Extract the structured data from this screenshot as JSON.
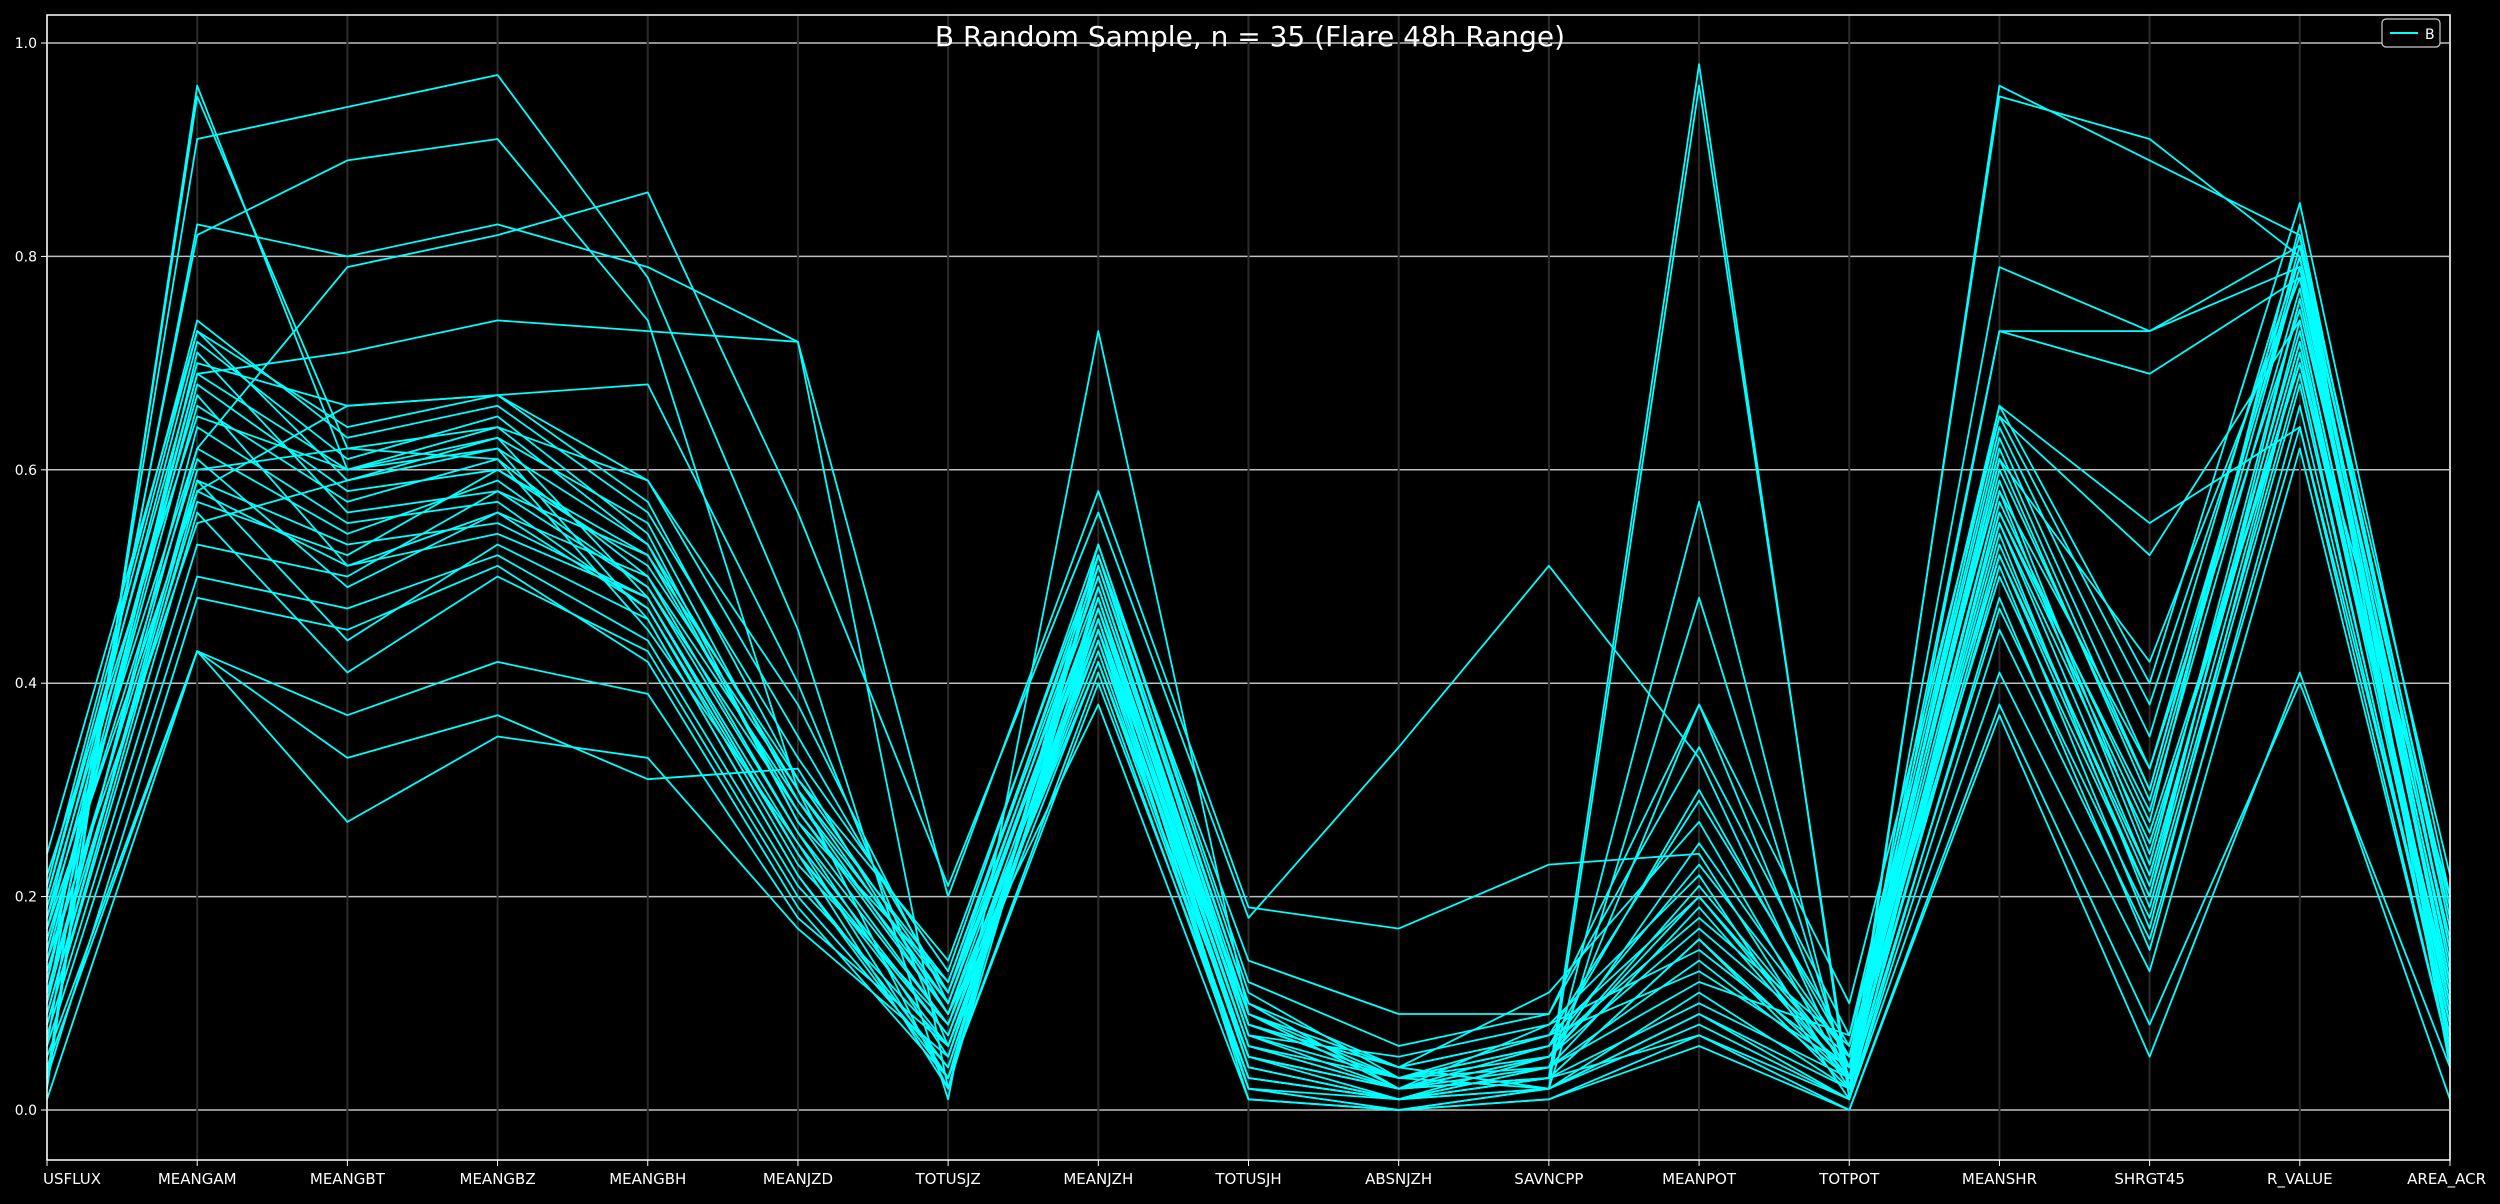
{
  "chart_data": {
    "type": "parallel-coordinates",
    "title": "B Random Sample, n = 35 (Flare 48h Range)",
    "categories": [
      "USFLUX",
      "MEANGAM",
      "MEANGBT",
      "MEANGBZ",
      "MEANGBH",
      "MEANJZD",
      "TOTUSJZ",
      "MEANJZH",
      "TOTUSJH",
      "ABSNJZH",
      "SAVNCPP",
      "MEANPOT",
      "TOTPOT",
      "MEANSHR",
      "SHRGT45",
      "R_VALUE",
      "AREA_ACR"
    ],
    "ylim": [
      0,
      1
    ],
    "y_ticks": [
      "0.0",
      "0.2",
      "0.4",
      "0.6",
      "0.8",
      "1.0"
    ],
    "grid": true,
    "legend": {
      "position": "top-right",
      "entries": [
        "B"
      ]
    },
    "colors": {
      "background": "#000000",
      "line": "#00FFFF",
      "axes": "#FFFFFF",
      "grid": "#FFFFFF"
    },
    "series": [
      {
        "values": [
          0.02,
          0.96,
          0.6,
          0.63,
          0.48,
          0.24,
          0.02,
          0.53,
          0.11,
          0.03,
          0.02,
          0.96,
          0.02,
          0.95,
          0.91,
          0.8,
          0.04
        ]
      },
      {
        "values": [
          0.03,
          0.95,
          0.62,
          0.61,
          0.45,
          0.25,
          0.03,
          0.51,
          0.1,
          0.02,
          0.03,
          0.98,
          0.01,
          0.96,
          0.89,
          0.82,
          0.05
        ]
      },
      {
        "values": [
          0.24,
          0.73,
          0.59,
          0.62,
          0.46,
          0.22,
          0.04,
          0.47,
          0.09,
          0.02,
          0.03,
          0.57,
          0.02,
          0.58,
          0.32,
          0.79,
          0.06
        ]
      },
      {
        "values": [
          0.06,
          0.91,
          0.94,
          0.97,
          0.78,
          0.45,
          0.01,
          0.73,
          0.09,
          0.04,
          0.02,
          0.48,
          0.03,
          0.79,
          0.73,
          0.81,
          0.22
        ]
      },
      {
        "values": [
          0.12,
          0.82,
          0.89,
          0.91,
          0.74,
          0.3,
          0.02,
          0.49,
          0.08,
          0.03,
          0.04,
          0.38,
          0.04,
          0.73,
          0.69,
          0.78,
          0.18
        ]
      },
      {
        "values": [
          0.1,
          0.83,
          0.8,
          0.83,
          0.79,
          0.72,
          0.2,
          0.58,
          0.19,
          0.17,
          0.23,
          0.24,
          0.02,
          0.73,
          0.73,
          0.79,
          0.12
        ]
      },
      {
        "values": [
          0.18,
          0.62,
          0.79,
          0.82,
          0.86,
          0.56,
          0.21,
          0.56,
          0.18,
          0.34,
          0.51,
          0.33,
          0.03,
          0.66,
          0.55,
          0.64,
          0.08
        ]
      },
      {
        "values": [
          0.15,
          0.69,
          0.71,
          0.74,
          0.73,
          0.72,
          0.02,
          0.52,
          0.14,
          0.09,
          0.09,
          0.38,
          0.1,
          0.65,
          0.52,
          0.74,
          0.1
        ]
      },
      {
        "values": [
          0.2,
          0.7,
          0.66,
          0.67,
          0.68,
          0.4,
          0.06,
          0.45,
          0.08,
          0.04,
          0.11,
          0.27,
          0.03,
          0.61,
          0.42,
          0.78,
          0.11
        ]
      },
      {
        "values": [
          0.17,
          0.58,
          0.66,
          0.67,
          0.59,
          0.38,
          0.1,
          0.48,
          0.07,
          0.02,
          0.08,
          0.22,
          0.01,
          0.57,
          0.27,
          0.83,
          0.15
        ]
      },
      {
        "values": [
          0.09,
          0.6,
          0.62,
          0.64,
          0.59,
          0.35,
          0.11,
          0.46,
          0.06,
          0.03,
          0.07,
          0.2,
          0.03,
          0.55,
          0.25,
          0.7,
          0.2
        ]
      },
      {
        "values": [
          0.14,
          0.55,
          0.59,
          0.63,
          0.55,
          0.29,
          0.09,
          0.44,
          0.05,
          0.02,
          0.06,
          0.18,
          0.06,
          0.52,
          0.22,
          0.72,
          0.09
        ]
      },
      {
        "values": [
          0.22,
          0.65,
          0.6,
          0.62,
          0.53,
          0.27,
          0.08,
          0.42,
          0.05,
          0.01,
          0.05,
          0.17,
          0.05,
          0.5,
          0.2,
          0.76,
          0.14
        ]
      },
      {
        "values": [
          0.11,
          0.57,
          0.52,
          0.6,
          0.51,
          0.3,
          0.12,
          0.5,
          0.07,
          0.05,
          0.08,
          0.15,
          0.04,
          0.62,
          0.3,
          0.81,
          0.17
        ]
      },
      {
        "values": [
          0.07,
          0.53,
          0.5,
          0.58,
          0.52,
          0.31,
          0.14,
          0.52,
          0.08,
          0.04,
          0.07,
          0.13,
          0.04,
          0.56,
          0.28,
          0.77,
          0.12
        ]
      },
      {
        "values": [
          0.16,
          0.61,
          0.49,
          0.56,
          0.5,
          0.26,
          0.05,
          0.48,
          0.04,
          0.01,
          0.04,
          0.12,
          0.07,
          0.59,
          0.24,
          0.73,
          0.08
        ]
      },
      {
        "values": [
          0.19,
          0.67,
          0.51,
          0.54,
          0.48,
          0.24,
          0.07,
          0.43,
          0.03,
          0.01,
          0.03,
          0.1,
          0.03,
          0.54,
          0.19,
          0.69,
          0.06
        ]
      },
      {
        "values": [
          0.13,
          0.59,
          0.44,
          0.53,
          0.46,
          0.22,
          0.03,
          0.4,
          0.03,
          0.01,
          0.02,
          0.09,
          0.02,
          0.51,
          0.17,
          0.71,
          0.1
        ]
      },
      {
        "values": [
          0.08,
          0.56,
          0.41,
          0.5,
          0.43,
          0.2,
          0.04,
          0.46,
          0.02,
          0.0,
          0.02,
          0.08,
          0.01,
          0.48,
          0.15,
          0.66,
          0.07
        ]
      },
      {
        "values": [
          0.05,
          0.43,
          0.37,
          0.42,
          0.39,
          0.18,
          0.06,
          0.44,
          0.02,
          0.01,
          0.03,
          0.07,
          0.01,
          0.41,
          0.13,
          0.62,
          0.05
        ]
      },
      {
        "values": [
          0.04,
          0.43,
          0.33,
          0.37,
          0.31,
          0.32,
          0.09,
          0.38,
          0.01,
          0.0,
          0.01,
          0.07,
          0.0,
          0.38,
          0.08,
          0.4,
          0.04
        ]
      },
      {
        "values": [
          0.01,
          0.43,
          0.27,
          0.35,
          0.33,
          0.17,
          0.05,
          0.45,
          0.01,
          0.0,
          0.01,
          0.06,
          0.0,
          0.37,
          0.05,
          0.41,
          0.01
        ]
      },
      {
        "values": [
          0.12,
          0.71,
          0.56,
          0.58,
          0.49,
          0.28,
          0.1,
          0.47,
          0.06,
          0.02,
          0.05,
          0.2,
          0.04,
          0.6,
          0.3,
          0.8,
          0.13
        ]
      },
      {
        "values": [
          0.15,
          0.66,
          0.57,
          0.61,
          0.5,
          0.29,
          0.11,
          0.49,
          0.07,
          0.03,
          0.06,
          0.23,
          0.05,
          0.63,
          0.32,
          0.75,
          0.16
        ]
      },
      {
        "values": [
          0.1,
          0.64,
          0.55,
          0.57,
          0.47,
          0.23,
          0.08,
          0.45,
          0.04,
          0.01,
          0.04,
          0.14,
          0.03,
          0.53,
          0.21,
          0.74,
          0.09
        ]
      },
      {
        "values": [
          0.18,
          0.72,
          0.61,
          0.65,
          0.54,
          0.27,
          0.12,
          0.51,
          0.09,
          0.03,
          0.06,
          0.3,
          0.05,
          0.64,
          0.35,
          0.82,
          0.18
        ]
      },
      {
        "values": [
          0.06,
          0.5,
          0.47,
          0.52,
          0.44,
          0.21,
          0.06,
          0.42,
          0.03,
          0.01,
          0.02,
          0.11,
          0.02,
          0.47,
          0.18,
          0.68,
          0.07
        ]
      },
      {
        "values": [
          0.21,
          0.74,
          0.63,
          0.66,
          0.56,
          0.33,
          0.13,
          0.53,
          0.12,
          0.06,
          0.09,
          0.34,
          0.07,
          0.66,
          0.4,
          0.85,
          0.2
        ]
      },
      {
        "values": [
          0.09,
          0.59,
          0.53,
          0.55,
          0.48,
          0.25,
          0.07,
          0.46,
          0.05,
          0.02,
          0.04,
          0.19,
          0.03,
          0.56,
          0.26,
          0.7,
          0.11
        ]
      },
      {
        "values": [
          0.14,
          0.68,
          0.58,
          0.6,
          0.52,
          0.28,
          0.09,
          0.48,
          0.06,
          0.02,
          0.05,
          0.21,
          0.04,
          0.58,
          0.23,
          0.76,
          0.12
        ]
      },
      {
        "values": [
          0.11,
          0.62,
          0.54,
          0.59,
          0.49,
          0.26,
          0.08,
          0.47,
          0.04,
          0.01,
          0.03,
          0.16,
          0.03,
          0.55,
          0.22,
          0.72,
          0.1
        ]
      },
      {
        "values": [
          0.17,
          0.69,
          0.6,
          0.64,
          0.53,
          0.3,
          0.1,
          0.5,
          0.08,
          0.03,
          0.05,
          0.25,
          0.05,
          0.61,
          0.29,
          0.79,
          0.15
        ]
      },
      {
        "values": [
          0.03,
          0.48,
          0.45,
          0.51,
          0.42,
          0.19,
          0.03,
          0.41,
          0.02,
          0.0,
          0.02,
          0.09,
          0.01,
          0.45,
          0.16,
          0.64,
          0.05
        ]
      },
      {
        "values": [
          0.2,
          0.73,
          0.64,
          0.67,
          0.57,
          0.31,
          0.11,
          0.52,
          0.1,
          0.04,
          0.07,
          0.29,
          0.06,
          0.65,
          0.38,
          0.8,
          0.19
        ]
      },
      {
        "values": [
          0.08,
          0.58,
          0.51,
          0.56,
          0.47,
          0.24,
          0.06,
          0.45,
          0.05,
          0.02,
          0.03,
          0.16,
          0.02,
          0.52,
          0.2,
          0.71,
          0.08
        ]
      }
    ]
  }
}
